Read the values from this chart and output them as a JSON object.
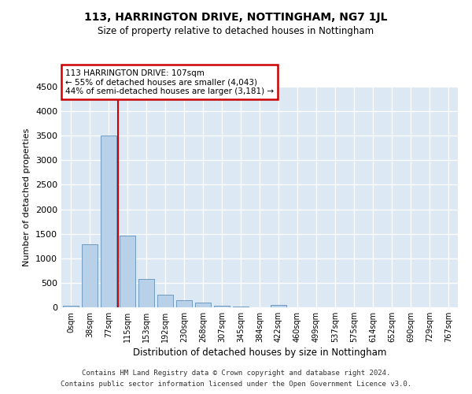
{
  "title": "113, HARRINGTON DRIVE, NOTTINGHAM, NG7 1JL",
  "subtitle": "Size of property relative to detached houses in Nottingham",
  "xlabel": "Distribution of detached houses by size in Nottingham",
  "ylabel": "Number of detached properties",
  "bar_labels": [
    "0sqm",
    "38sqm",
    "77sqm",
    "115sqm",
    "153sqm",
    "192sqm",
    "230sqm",
    "268sqm",
    "307sqm",
    "345sqm",
    "384sqm",
    "422sqm",
    "460sqm",
    "499sqm",
    "537sqm",
    "575sqm",
    "614sqm",
    "652sqm",
    "690sqm",
    "729sqm",
    "767sqm"
  ],
  "bar_values": [
    30,
    1290,
    3500,
    1460,
    580,
    255,
    140,
    90,
    40,
    15,
    5,
    55,
    0,
    0,
    0,
    0,
    0,
    0,
    0,
    0,
    0
  ],
  "bar_color": "#b8d0e8",
  "bar_edge_color": "#6090b8",
  "background_color": "#dce9f5",
  "vline_x": 2.5,
  "vline_color": "#cc0000",
  "annotation_text": "113 HARRINGTON DRIVE: 107sqm\n← 55% of detached houses are smaller (4,043)\n44% of semi-detached houses are larger (3,181) →",
  "ann_box_facecolor": "#ffffff",
  "ann_box_edgecolor": "#cc0000",
  "ylim": [
    0,
    4500
  ],
  "yticks": [
    0,
    500,
    1000,
    1500,
    2000,
    2500,
    3000,
    3500,
    4000,
    4500
  ],
  "footer_line1": "Contains HM Land Registry data © Crown copyright and database right 2024.",
  "footer_line2": "Contains public sector information licensed under the Open Government Licence v3.0.",
  "title_fontsize": 10,
  "subtitle_fontsize": 8.5,
  "figsize": [
    6.0,
    5.0
  ],
  "dpi": 100
}
